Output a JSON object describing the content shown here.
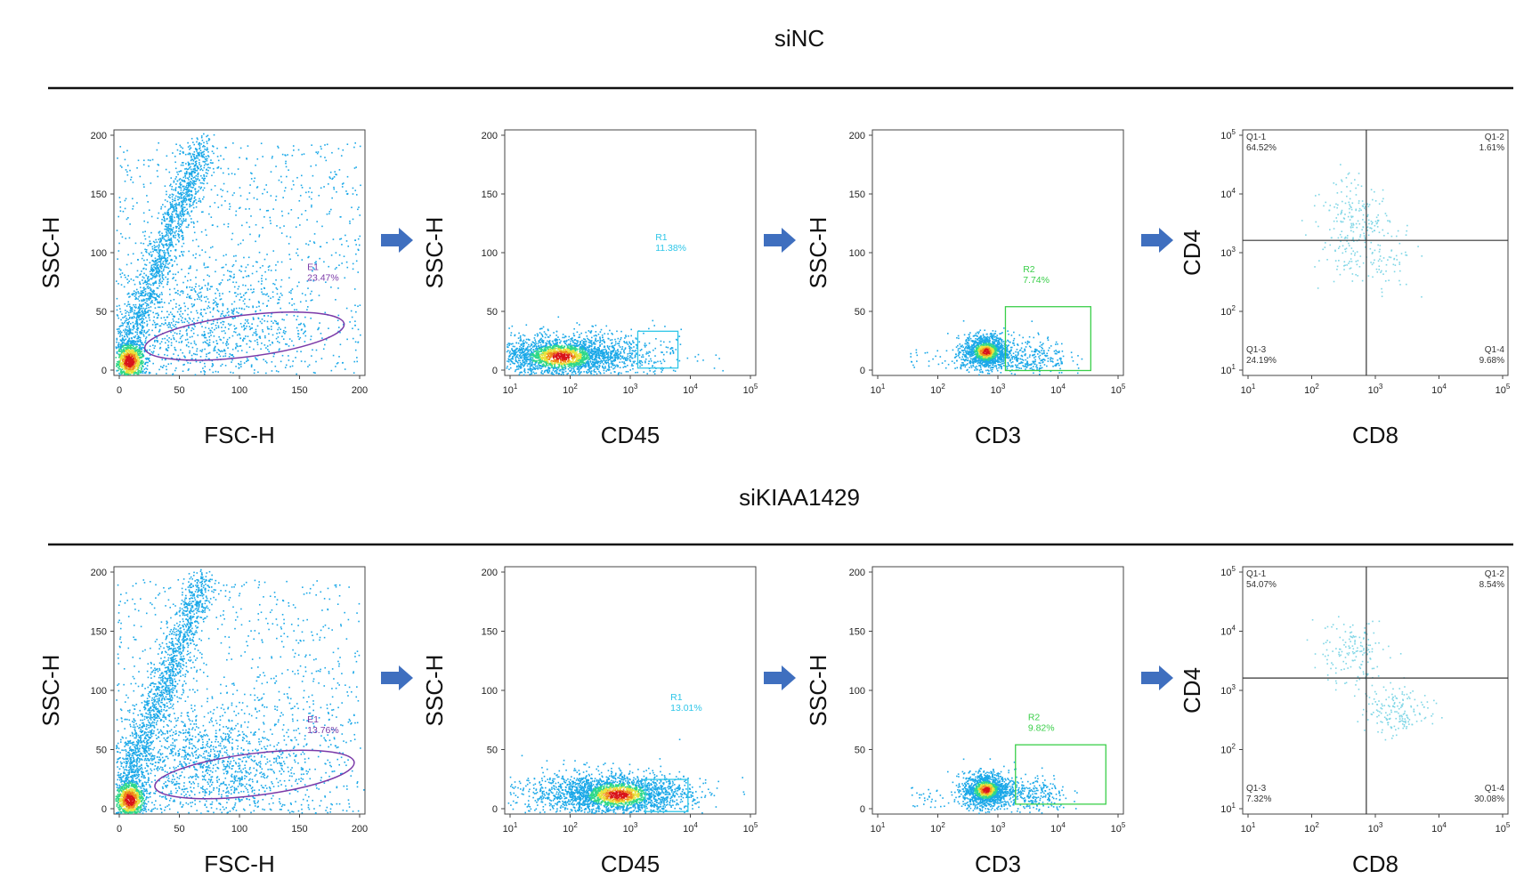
{
  "colors": {
    "ellipse_gate": "#7b3aa8",
    "r1_gate": "#2ec6e8",
    "r2_gate": "#3bcf4a",
    "quadrant_lines": "#333333",
    "arrow": "#3f6fbf",
    "divider": "#111111"
  },
  "arrow_icon": "right-arrow-icon",
  "rows": [
    {
      "title": "siNC",
      "panels": [
        {
          "kind": "scatter-ellipse",
          "xlabel": "FSC-H",
          "ylabel": "SSC-H",
          "xticks": [
            "0",
            "50",
            "100",
            "150",
            "200"
          ],
          "yticks": [
            "0",
            "50",
            "100",
            "150",
            "200"
          ],
          "gate_name": "E1",
          "gate_pct": "23.47%"
        },
        {
          "kind": "scatter-box-cd45",
          "xlabel": "CD45",
          "ylabel": "SSC-H",
          "xticks": [
            "10",
            "10",
            "10",
            "10",
            "10"
          ],
          "xexp": [
            "1",
            "2",
            "3",
            "4",
            "5"
          ],
          "yticks": [
            "0",
            "50",
            "100",
            "150",
            "200"
          ],
          "gate_name": "R1",
          "gate_pct": "11.38%"
        },
        {
          "kind": "scatter-box-cd3",
          "xlabel": "CD3",
          "ylabel": "SSC-H",
          "xticks": [
            "10",
            "10",
            "10",
            "10",
            "10"
          ],
          "xexp": [
            "1",
            "2",
            "3",
            "4",
            "5"
          ],
          "yticks": [
            "0",
            "50",
            "100",
            "150",
            "200"
          ],
          "gate_name": "R2",
          "gate_pct": "7.74%"
        },
        {
          "kind": "quadrant",
          "xlabel": "CD8",
          "ylabel": "CD4",
          "xticks": [
            "10",
            "10",
            "10",
            "10",
            "10"
          ],
          "xexp": [
            "1",
            "2",
            "3",
            "4",
            "5"
          ],
          "yticks": [
            "10",
            "10",
            "10",
            "10",
            "10"
          ],
          "yexp": [
            "1",
            "2",
            "3",
            "4",
            "5"
          ],
          "quadrants": [
            {
              "name": "Q1-1",
              "pct": "64.52%"
            },
            {
              "name": "Q1-2",
              "pct": "1.61%"
            },
            {
              "name": "Q1-3",
              "pct": "24.19%"
            },
            {
              "name": "Q1-4",
              "pct": "9.68%"
            }
          ]
        }
      ]
    },
    {
      "title": "siKIAA1429",
      "panels": [
        {
          "kind": "scatter-ellipse",
          "xlabel": "FSC-H",
          "ylabel": "SSC-H",
          "xticks": [
            "0",
            "50",
            "100",
            "150",
            "200"
          ],
          "yticks": [
            "0",
            "50",
            "100",
            "150",
            "200"
          ],
          "gate_name": "E1",
          "gate_pct": "13.76%"
        },
        {
          "kind": "scatter-box-cd45",
          "xlabel": "CD45",
          "ylabel": "SSC-H",
          "xticks": [
            "10",
            "10",
            "10",
            "10",
            "10"
          ],
          "xexp": [
            "1",
            "2",
            "3",
            "4",
            "5"
          ],
          "yticks": [
            "0",
            "50",
            "100",
            "150",
            "200"
          ],
          "gate_name": "R1",
          "gate_pct": "13.01%"
        },
        {
          "kind": "scatter-box-cd3",
          "xlabel": "CD3",
          "ylabel": "SSC-H",
          "xticks": [
            "10",
            "10",
            "10",
            "10",
            "10"
          ],
          "xexp": [
            "1",
            "2",
            "3",
            "4",
            "5"
          ],
          "yticks": [
            "0",
            "50",
            "100",
            "150",
            "200"
          ],
          "gate_name": "R2",
          "gate_pct": "9.82%"
        },
        {
          "kind": "quadrant",
          "xlabel": "CD8",
          "ylabel": "CD4",
          "xticks": [
            "10",
            "10",
            "10",
            "10",
            "10"
          ],
          "xexp": [
            "1",
            "2",
            "3",
            "4",
            "5"
          ],
          "yticks": [
            "10",
            "10",
            "10",
            "10",
            "10"
          ],
          "yexp": [
            "1",
            "2",
            "3",
            "4",
            "5"
          ],
          "quadrants": [
            {
              "name": "Q1-1",
              "pct": "54.07%"
            },
            {
              "name": "Q1-2",
              "pct": "8.54%"
            },
            {
              "name": "Q1-3",
              "pct": "7.32%"
            },
            {
              "name": "Q1-4",
              "pct": "30.08%"
            }
          ]
        }
      ]
    }
  ],
  "chart_data": [
    {
      "type": "scatter",
      "row": "siNC",
      "xlabel": "FSC-H",
      "ylabel": "SSC-H",
      "xlim": [
        0,
        200
      ],
      "ylim": [
        0,
        200
      ],
      "gate": {
        "name": "E1",
        "percent": 23.47
      }
    },
    {
      "type": "scatter",
      "row": "siNC",
      "xlabel": "CD45",
      "ylabel": "SSC-H",
      "xscale": "log",
      "xlim": [
        10,
        100000
      ],
      "ylim": [
        0,
        200
      ],
      "gate": {
        "name": "R1",
        "percent": 11.38
      }
    },
    {
      "type": "scatter",
      "row": "siNC",
      "xlabel": "CD3",
      "ylabel": "SSC-H",
      "xscale": "log",
      "xlim": [
        10,
        100000
      ],
      "ylim": [
        0,
        200
      ],
      "gate": {
        "name": "R2",
        "percent": 7.74
      }
    },
    {
      "type": "scatter",
      "row": "siNC",
      "xlabel": "CD8",
      "ylabel": "CD4",
      "xscale": "log",
      "yscale": "log",
      "xlim": [
        10,
        100000
      ],
      "ylim": [
        10,
        100000
      ],
      "quadrants": {
        "Q1-1": 64.52,
        "Q1-2": 1.61,
        "Q1-3": 24.19,
        "Q1-4": 9.68
      }
    },
    {
      "type": "scatter",
      "row": "siKIAA1429",
      "xlabel": "FSC-H",
      "ylabel": "SSC-H",
      "xlim": [
        0,
        200
      ],
      "ylim": [
        0,
        200
      ],
      "gate": {
        "name": "E1",
        "percent": 13.76
      }
    },
    {
      "type": "scatter",
      "row": "siKIAA1429",
      "xlabel": "CD45",
      "ylabel": "SSC-H",
      "xscale": "log",
      "xlim": [
        10,
        100000
      ],
      "ylim": [
        0,
        200
      ],
      "gate": {
        "name": "R1",
        "percent": 13.01
      }
    },
    {
      "type": "scatter",
      "row": "siKIAA1429",
      "xlabel": "CD3",
      "ylabel": "SSC-H",
      "xscale": "log",
      "xlim": [
        10,
        100000
      ],
      "ylim": [
        0,
        200
      ],
      "gate": {
        "name": "R2",
        "percent": 9.82
      }
    },
    {
      "type": "scatter",
      "row": "siKIAA1429",
      "xlabel": "CD8",
      "ylabel": "CD4",
      "xscale": "log",
      "yscale": "log",
      "xlim": [
        10,
        100000
      ],
      "ylim": [
        10,
        100000
      ],
      "quadrants": {
        "Q1-1": 54.07,
        "Q1-2": 8.54,
        "Q1-3": 7.32,
        "Q1-4": 30.08
      }
    }
  ]
}
